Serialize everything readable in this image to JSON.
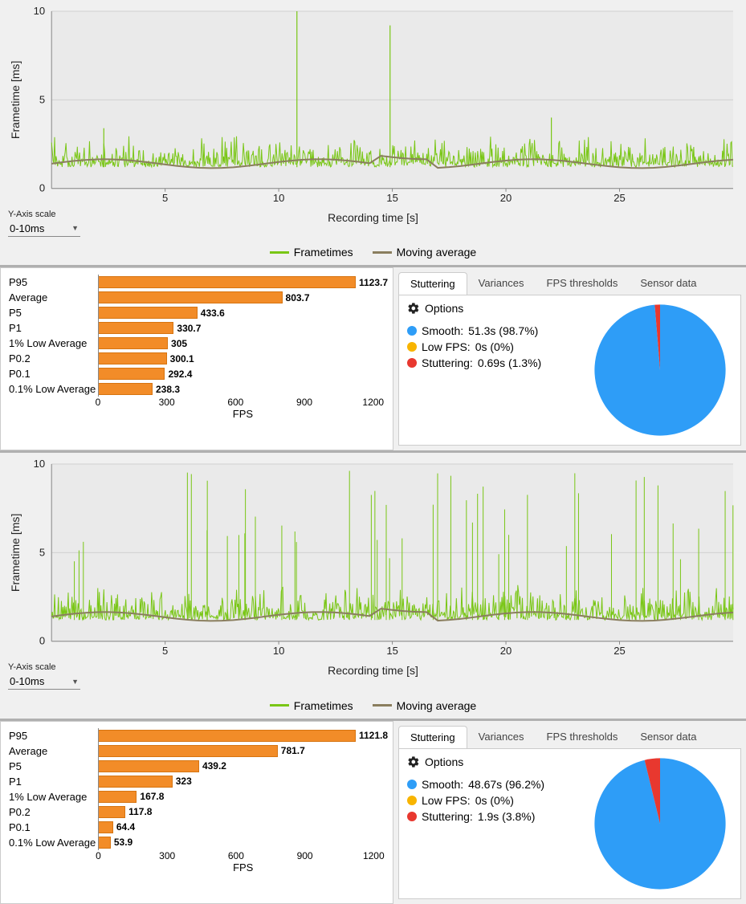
{
  "line_charts": {
    "ylabel": "Frametime [ms]",
    "xlabel": "Recording time [s]",
    "yscale_label": "Y-Axis scale",
    "yscale_value": "0-10ms",
    "legend": [
      {
        "label": "Frametimes",
        "color": "#79c615"
      },
      {
        "label": "Moving average",
        "color": "#8a7e5e"
      }
    ],
    "ylim": [
      0,
      10
    ],
    "yticks": [
      0,
      5,
      10
    ],
    "xlim": [
      0,
      30
    ],
    "xticks": [
      5,
      10,
      15,
      20,
      25
    ],
    "bg_color": "#eaeaea",
    "grid_color": "#d0d0d0",
    "frametime_color": "#79c615",
    "movavg_color": "#8a7e5e",
    "chart1": {
      "baseline": 1.2,
      "noise_top": 3.0,
      "spikes": [
        {
          "x": 10.8,
          "y": 10.0
        },
        {
          "x": 14.9,
          "y": 9.2
        },
        {
          "x": 22.0,
          "y": 4.0
        },
        {
          "x": 2.3,
          "y": 3.4
        }
      ],
      "movavg_level": 1.4
    },
    "chart2": {
      "baseline": 1.2,
      "noise_top": 3.2,
      "spike_density": 45,
      "spike_min": 4.5,
      "spike_max": 10.0,
      "movavg_level": 1.4
    }
  },
  "bar_panels": {
    "xlabel": "FPS",
    "color": "#f28c28",
    "border_color": "#d67410",
    "xlim": [
      0,
      1260
    ],
    "xticks": [
      0,
      300,
      600,
      900,
      1200
    ],
    "chart1": {
      "rows": [
        {
          "label": "P95",
          "value": 1123.7
        },
        {
          "label": "Average",
          "value": 803.7
        },
        {
          "label": "P5",
          "value": 433.6
        },
        {
          "label": "P1",
          "value": 330.7
        },
        {
          "label": "1% Low Average",
          "value": 305
        },
        {
          "label": "P0.2",
          "value": 300.1
        },
        {
          "label": "P0.1",
          "value": 292.4
        },
        {
          "label": "0.1% Low Average",
          "value": 238.3
        }
      ]
    },
    "chart2": {
      "rows": [
        {
          "label": "P95",
          "value": 1121.8
        },
        {
          "label": "Average",
          "value": 781.7
        },
        {
          "label": "P5",
          "value": 439.2
        },
        {
          "label": "P1",
          "value": 323
        },
        {
          "label": "1% Low Average",
          "value": 167.8
        },
        {
          "label": "P0.2",
          "value": 117.8
        },
        {
          "label": "P0.1",
          "value": 64.4
        },
        {
          "label": "0.1% Low Average",
          "value": 53.9
        }
      ]
    }
  },
  "tabs": {
    "items": [
      "Stuttering",
      "Variances",
      "FPS thresholds",
      "Sensor data"
    ],
    "active": 0,
    "options_label": "Options"
  },
  "stuttering": {
    "colors": {
      "smooth": "#2e9df7",
      "lowfps": "#f8b400",
      "stutter": "#e8382f"
    },
    "panel1": {
      "smooth": {
        "label": "Smooth:",
        "value": "51.3s (98.7%)",
        "pct": 98.7
      },
      "lowfps": {
        "label": "Low FPS:",
        "value": "0s (0%)",
        "pct": 0
      },
      "stutter": {
        "label": "Stuttering:",
        "value": "0.69s (1.3%)",
        "pct": 1.3
      }
    },
    "panel2": {
      "smooth": {
        "label": "Smooth:",
        "value": "48.67s (96.2%)",
        "pct": 96.2
      },
      "lowfps": {
        "label": "Low FPS:",
        "value": "0s (0%)",
        "pct": 0
      },
      "stutter": {
        "label": "Stuttering:",
        "value": "1.9s (3.8%)",
        "pct": 3.8
      }
    }
  }
}
